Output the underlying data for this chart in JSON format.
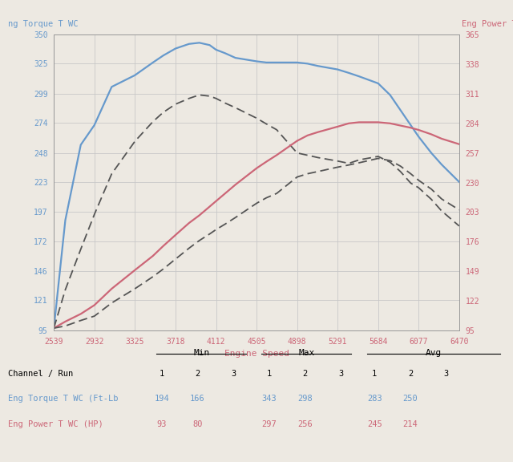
{
  "bg_color": "#ede9e2",
  "grid_color": "#c8c8c8",
  "left_label": "ng Torque T WC",
  "right_label": "Eng Power T W",
  "xlabel": "Engine Speed",
  "left_color": "#6699cc",
  "right_color": "#cc6677",
  "dashed_color": "#555555",
  "ylim_left": [
    95,
    350
  ],
  "ylim_right": [
    95,
    365
  ],
  "yticks_left": [
    95,
    121,
    146,
    172,
    197,
    223,
    248,
    274,
    299,
    325,
    350
  ],
  "yticks_right": [
    95,
    122,
    149,
    176,
    203,
    230,
    257,
    284,
    311,
    338,
    365
  ],
  "xticks": [
    2539,
    2932,
    3325,
    3718,
    4112,
    4505,
    4898,
    5291,
    5684,
    6077,
    6470
  ],
  "torque_run1": {
    "x": [
      2539,
      2650,
      2800,
      2932,
      3100,
      3325,
      3500,
      3600,
      3718,
      3850,
      3950,
      4050,
      4112,
      4200,
      4300,
      4505,
      4600,
      4700,
      4898,
      5000,
      5100,
      5291,
      5400,
      5500,
      5684,
      5800,
      5900,
      6000,
      6077,
      6200,
      6300,
      6470
    ],
    "y": [
      97,
      190,
      255,
      272,
      305,
      315,
      326,
      332,
      338,
      342,
      343,
      341,
      337,
      334,
      330,
      327,
      326,
      326,
      326,
      325,
      323,
      320,
      317,
      314,
      308,
      298,
      285,
      272,
      262,
      248,
      238,
      223
    ]
  },
  "torque_run2": {
    "x": [
      2539,
      2650,
      2800,
      2932,
      3100,
      3325,
      3500,
      3600,
      3718,
      3850,
      3950,
      4050,
      4112,
      4200,
      4300,
      4505,
      4600,
      4700,
      4898,
      5000,
      5100,
      5291,
      5400,
      5500,
      5684,
      5800,
      5900,
      6000,
      6077,
      6200,
      6300,
      6470
    ],
    "y": [
      97,
      130,
      165,
      195,
      230,
      258,
      275,
      283,
      290,
      295,
      298,
      297,
      295,
      291,
      287,
      278,
      273,
      268,
      248,
      246,
      244,
      241,
      239,
      242,
      245,
      240,
      232,
      222,
      218,
      208,
      198,
      185
    ]
  },
  "power_run1": {
    "x": [
      2539,
      2650,
      2800,
      2932,
      3100,
      3325,
      3500,
      3600,
      3718,
      3850,
      3950,
      4050,
      4112,
      4200,
      4300,
      4505,
      4600,
      4700,
      4898,
      5000,
      5100,
      5291,
      5400,
      5500,
      5684,
      5800,
      5900,
      6000,
      6077,
      6200,
      6300,
      6470
    ],
    "y": [
      97,
      103,
      110,
      118,
      133,
      150,
      163,
      172,
      182,
      193,
      200,
      208,
      213,
      220,
      228,
      243,
      249,
      255,
      268,
      273,
      276,
      281,
      284,
      285,
      285,
      284,
      282,
      280,
      278,
      274,
      270,
      265
    ]
  },
  "power_run2": {
    "x": [
      2539,
      2650,
      2800,
      2932,
      3100,
      3325,
      3500,
      3600,
      3718,
      3850,
      3950,
      4050,
      4112,
      4200,
      4300,
      4505,
      4600,
      4700,
      4898,
      5000,
      5100,
      5291,
      5400,
      5500,
      5684,
      5800,
      5900,
      6000,
      6077,
      6200,
      6300,
      6470
    ],
    "y": [
      97,
      99,
      104,
      108,
      120,
      133,
      144,
      151,
      160,
      170,
      177,
      183,
      187,
      192,
      198,
      211,
      216,
      220,
      235,
      238,
      240,
      244,
      246,
      248,
      252,
      250,
      245,
      238,
      232,
      224,
      215,
      205
    ]
  }
}
